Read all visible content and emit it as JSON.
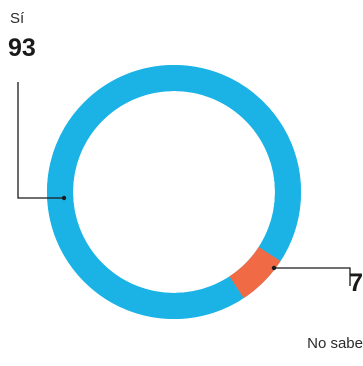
{
  "chart_data": {
    "type": "pie",
    "variant": "donut",
    "title": "",
    "slices": [
      {
        "label": "Sí",
        "value": 93,
        "value_label": "93",
        "color": "#1bb3e6"
      },
      {
        "label": "No sabe",
        "value": 7,
        "value_label": "7",
        "color": "#ef6a45"
      }
    ],
    "legend": "none",
    "separator_color": "#ffffff",
    "leader_color": "#1a1a1a"
  }
}
